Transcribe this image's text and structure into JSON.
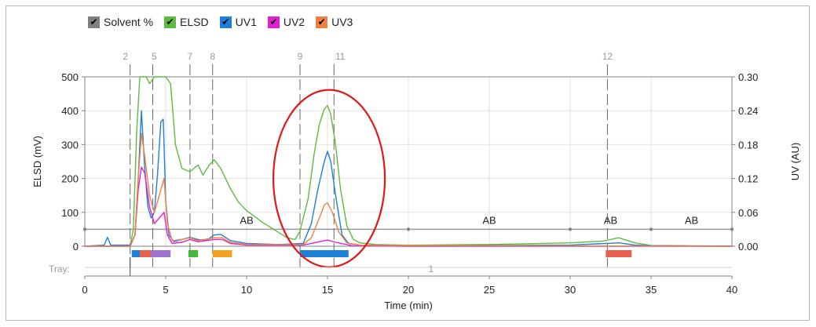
{
  "legend": [
    {
      "label": "Solvent %",
      "color": "#808080",
      "icon": "check-icon"
    },
    {
      "label": "ELSD",
      "color": "#5dbb3f",
      "icon": "check-icon"
    },
    {
      "label": "UV1",
      "color": "#1e7fd8",
      "icon": "check-icon"
    },
    {
      "label": "UV2",
      "color": "#e020d0",
      "icon": "check-icon"
    },
    {
      "label": "UV3",
      "color": "#f08040",
      "icon": "check-icon"
    }
  ],
  "chart_data": {
    "type": "line",
    "xlabel": "Time (min)",
    "ylabel_left": "ELSD (mV)",
    "ylabel_right": "UV (AU)",
    "xlim": [
      0,
      40
    ],
    "ylim_left": [
      0,
      500
    ],
    "ylim_right": [
      0,
      0.3
    ],
    "x_ticks": [
      0,
      5,
      10,
      15,
      20,
      25,
      30,
      35,
      40
    ],
    "y_ticks_left": [
      0,
      100,
      200,
      300,
      400,
      500
    ],
    "y_ticks_right": [
      "0.00",
      "0.06",
      "0.12",
      "0.18",
      "0.24",
      "0.30"
    ],
    "grid": true,
    "tray_label": "Tray:",
    "tray_value": "1",
    "fraction_markers": [
      {
        "label": "2",
        "x": 2.8
      },
      {
        "label": "5",
        "x": 4.2
      },
      {
        "label": "7",
        "x": 6.5
      },
      {
        "label": "8",
        "x": 7.9
      },
      {
        "label": "9",
        "x": 13.3
      },
      {
        "label": "11",
        "x": 15.4
      },
      {
        "label": "12",
        "x": 32.3
      }
    ],
    "solvent_segments": [
      {
        "label": "AB",
        "x0": 0,
        "x1": 20
      },
      {
        "label": "AB",
        "x0": 20,
        "x1": 30
      },
      {
        "label": "AB",
        "x0": 30,
        "x1": 35
      },
      {
        "label": "AB",
        "x0": 35,
        "x1": 40
      }
    ],
    "solvent_level_mV": 50,
    "fraction_bars": [
      {
        "x0": 2.9,
        "x1": 3.4,
        "color": "#1e7fd8"
      },
      {
        "x0": 3.4,
        "x1": 4.1,
        "color": "#e86050"
      },
      {
        "x0": 4.1,
        "x1": 5.3,
        "color": "#a070d0"
      },
      {
        "x0": 6.4,
        "x1": 7.0,
        "color": "#44b840"
      },
      {
        "x0": 7.9,
        "x1": 9.1,
        "color": "#f5a020"
      },
      {
        "x0": 13.3,
        "x1": 16.3,
        "color": "#1e7fd8"
      },
      {
        "x0": 32.2,
        "x1": 33.8,
        "color": "#e86050"
      }
    ],
    "highlight": {
      "cx": 15.1,
      "cy_mV": 200,
      "note": "red ellipse around peak at ~15 min"
    },
    "series": [
      {
        "name": "ELSD",
        "axis": "left",
        "color": "#5dbb3f",
        "x": [
          0,
          2.8,
          3.0,
          3.2,
          3.4,
          3.8,
          4.0,
          4.3,
          4.6,
          5.0,
          5.3,
          5.6,
          6.0,
          6.5,
          7.0,
          7.3,
          7.7,
          8.0,
          8.4,
          9.0,
          9.5,
          10,
          11,
          12,
          12.5,
          13,
          13.3,
          13.8,
          14.2,
          14.5,
          14.8,
          15.0,
          15.2,
          15.5,
          15.8,
          16.2,
          16.6,
          17,
          18,
          20,
          25,
          30,
          32,
          33,
          34,
          35,
          40
        ],
        "y": [
          0,
          0,
          50,
          330,
          500,
          500,
          480,
          500,
          500,
          500,
          480,
          300,
          230,
          220,
          240,
          210,
          240,
          255,
          230,
          170,
          130,
          105,
          70,
          40,
          25,
          20,
          45,
          140,
          280,
          360,
          405,
          415,
          390,
          300,
          170,
          60,
          20,
          10,
          5,
          3,
          5,
          10,
          15,
          25,
          10,
          2,
          0
        ]
      },
      {
        "name": "UV1",
        "axis": "right",
        "color": "#1e7fd8",
        "x": [
          0,
          1.2,
          1.4,
          1.6,
          2.8,
          3.1,
          3.3,
          3.5,
          3.7,
          3.9,
          4.1,
          4.3,
          4.5,
          4.7,
          4.85,
          5.0,
          5.2,
          5.5,
          6.0,
          6.5,
          7.0,
          7.5,
          8.0,
          8.4,
          9.0,
          10,
          12,
          13.5,
          14.0,
          14.4,
          14.8,
          15.0,
          15.2,
          15.5,
          15.9,
          16.3,
          17,
          20,
          30,
          33,
          34,
          35,
          40
        ],
        "y": [
          0,
          0.002,
          0.016,
          0.002,
          0.002,
          0.02,
          0.12,
          0.24,
          0.14,
          0.07,
          0.05,
          0.06,
          0.13,
          0.22,
          0.225,
          0.08,
          0.02,
          0.008,
          0.012,
          0.016,
          0.012,
          0.01,
          0.02,
          0.021,
          0.01,
          0.005,
          0.003,
          0.005,
          0.04,
          0.1,
          0.15,
          0.168,
          0.15,
          0.09,
          0.02,
          0.005,
          0.002,
          0.001,
          0.002,
          0.006,
          0.002,
          0.001,
          0
        ]
      },
      {
        "name": "UV2",
        "axis": "right",
        "color": "#e020d0",
        "x": [
          0,
          2.8,
          3.1,
          3.3,
          3.5,
          3.7,
          4.0,
          4.3,
          4.6,
          4.9,
          5.1,
          5.4,
          6.0,
          6.5,
          7.0,
          8.0,
          8.5,
          9.0,
          10,
          13.5,
          14.5,
          15.0,
          15.5,
          16.5,
          20,
          40
        ],
        "y": [
          0,
          0,
          0.02,
          0.1,
          0.14,
          0.13,
          0.07,
          0.04,
          0.05,
          0.06,
          0.02,
          0.005,
          0.007,
          0.012,
          0.008,
          0.012,
          0.012,
          0.005,
          0.002,
          0.002,
          0.008,
          0.011,
          0.007,
          0.001,
          0,
          0
        ]
      },
      {
        "name": "UV3",
        "axis": "right",
        "color": "#f08040",
        "x": [
          0,
          2.8,
          3.1,
          3.3,
          3.5,
          3.7,
          4.0,
          4.3,
          4.6,
          4.9,
          5.1,
          5.4,
          6.0,
          6.5,
          7.0,
          8.0,
          8.5,
          9.0,
          10,
          13.5,
          14.0,
          14.5,
          14.8,
          15.0,
          15.3,
          15.7,
          16.2,
          17,
          20,
          40
        ],
        "y": [
          0,
          0,
          0.02,
          0.12,
          0.2,
          0.16,
          0.09,
          0.06,
          0.09,
          0.12,
          0.04,
          0.01,
          0.012,
          0.015,
          0.01,
          0.015,
          0.015,
          0.007,
          0.003,
          0.003,
          0.015,
          0.05,
          0.073,
          0.077,
          0.06,
          0.025,
          0.006,
          0.002,
          0.001,
          0
        ]
      }
    ]
  }
}
